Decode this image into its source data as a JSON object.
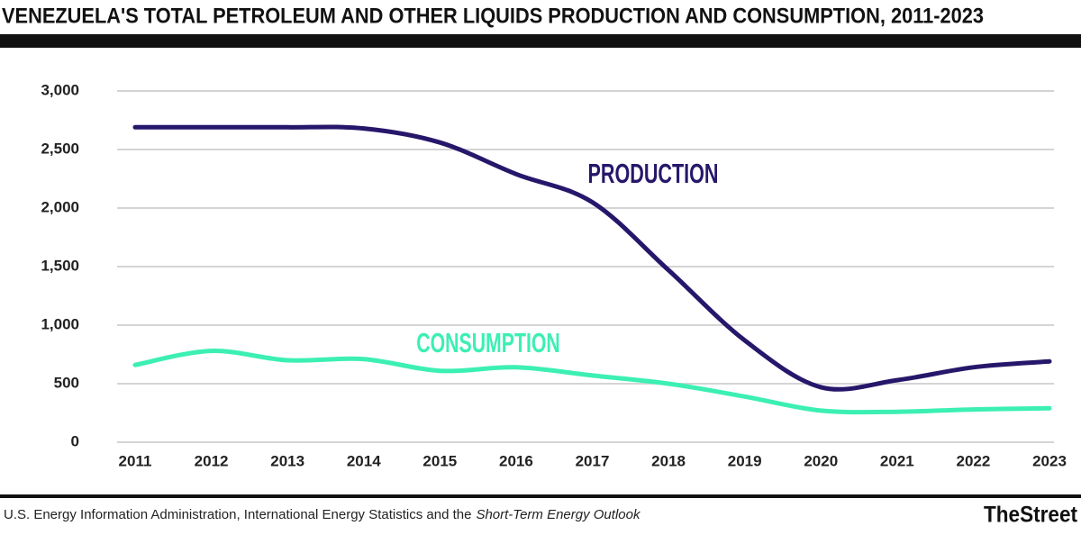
{
  "chart_data": {
    "type": "line",
    "title": "VENEZUELA'S TOTAL PETROLEUM AND OTHER LIQUIDS PRODUCTION AND CONSUMPTION, 2011-2023",
    "categories": [
      "2011",
      "2012",
      "2013",
      "2014",
      "2015",
      "2016",
      "2017",
      "2018",
      "2019",
      "2020",
      "2021",
      "2022",
      "2023"
    ],
    "series": [
      {
        "name": "PRODUCTION",
        "color": "#27176b",
        "values": [
          2690,
          2690,
          2690,
          2680,
          2560,
          2290,
          2050,
          1470,
          870,
          470,
          530,
          640,
          690
        ]
      },
      {
        "name": "CONSUMPTION",
        "color": "#3cefb3",
        "values": [
          660,
          780,
          700,
          710,
          610,
          640,
          570,
          500,
          390,
          270,
          260,
          280,
          290
        ]
      }
    ],
    "ylim": [
      0,
      3000
    ],
    "yticks": [
      0,
      500,
      {
        "value": 1000,
        "label": "1,000"
      },
      {
        "value": 1500,
        "label": "1,500"
      },
      {
        "value": 2000,
        "label": "2,000"
      },
      {
        "value": 2500,
        "label": "2,500"
      },
      {
        "value": 3000,
        "label": "3,000"
      }
    ],
    "grid": true,
    "source_prefix": "U.S. Energy Information Administration, International Energy Statistics and the",
    "source_title": "Short-Term Energy Outlook",
    "brand": "TheStreet"
  }
}
